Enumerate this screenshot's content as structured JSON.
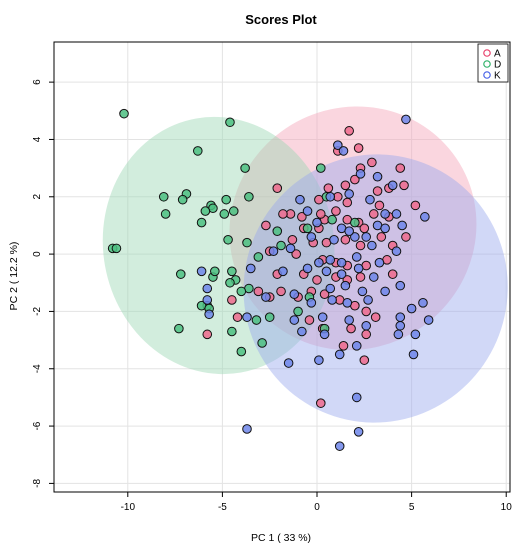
{
  "chart_data": {
    "type": "scatter",
    "title": "Scores Plot",
    "xlabel": "PC 1 ( 33 %)",
    "ylabel": "PC 2 ( 12.2 %)",
    "xlim": [
      -13.9,
      10.2
    ],
    "ylim": [
      -8.3,
      7.4
    ],
    "x_ticks": [
      -10,
      -5,
      0,
      5,
      10
    ],
    "y_ticks": [
      -8,
      -6,
      -4,
      -2,
      0,
      2,
      4,
      6
    ],
    "grid": true,
    "legend_position": "top-right",
    "colors": {
      "A": "#f4a3b9",
      "D": "#9bd8b4",
      "K": "#9aa8ee"
    },
    "edge_colors": {
      "A": "#e8436d",
      "D": "#33b36b",
      "K": "#4a64e8"
    },
    "series": [
      {
        "name": "A",
        "ellipse": {
          "cx": 1.9,
          "cy": 0.9,
          "rx": 6.6,
          "ry": 4.2,
          "angle": 34
        },
        "points": [
          [
            1.7,
            4.3
          ],
          [
            2.9,
            3.2
          ],
          [
            1.1,
            3.6
          ],
          [
            2.2,
            3.7
          ],
          [
            2.3,
            3.0
          ],
          [
            3.2,
            2.2
          ],
          [
            4.4,
            3.0
          ],
          [
            3.8,
            2.3
          ],
          [
            4.6,
            2.4
          ],
          [
            2.0,
            2.6
          ],
          [
            0.6,
            2.3
          ],
          [
            1.5,
            2.4
          ],
          [
            0.1,
            1.9
          ],
          [
            1.1,
            2.0
          ],
          [
            1.6,
            1.8
          ],
          [
            3.3,
            1.7
          ],
          [
            5.2,
            1.7
          ],
          [
            -2.1,
            2.3
          ],
          [
            -1.4,
            1.4
          ],
          [
            -1.8,
            1.4
          ],
          [
            -2.7,
            1.0
          ],
          [
            -0.8,
            1.3
          ],
          [
            -0.7,
            0.9
          ],
          [
            0.1,
            0.9
          ],
          [
            1.0,
            1.5
          ],
          [
            1.6,
            1.2
          ],
          [
            2.2,
            1.1
          ],
          [
            3.0,
            1.4
          ],
          [
            2.5,
            0.9
          ],
          [
            0.4,
            1.2
          ],
          [
            0.2,
            1.4
          ],
          [
            3.8,
            1.3
          ],
          [
            -0.2,
            0.4
          ],
          [
            0.5,
            0.4
          ],
          [
            1.5,
            0.5
          ],
          [
            2.3,
            0.3
          ],
          [
            3.4,
            0.6
          ],
          [
            4.0,
            0.3
          ],
          [
            4.7,
            0.6
          ],
          [
            -1.3,
            0.5
          ],
          [
            -2.5,
            0.1
          ],
          [
            -1.1,
            0.0
          ],
          [
            0.3,
            -0.2
          ],
          [
            1.0,
            -0.3
          ],
          [
            1.6,
            -0.4
          ],
          [
            2.6,
            -0.4
          ],
          [
            3.7,
            -0.2
          ],
          [
            -2.1,
            -0.7
          ],
          [
            -0.7,
            -0.7
          ],
          [
            0.0,
            -0.9
          ],
          [
            1.0,
            -0.8
          ],
          [
            1.6,
            -0.9
          ],
          [
            2.3,
            -0.8
          ],
          [
            4.0,
            -0.7
          ],
          [
            -1.9,
            -1.3
          ],
          [
            -2.5,
            -1.5
          ],
          [
            -1.0,
            -1.5
          ],
          [
            -0.3,
            -1.3
          ],
          [
            0.4,
            -1.4
          ],
          [
            1.2,
            -1.6
          ],
          [
            2.0,
            -1.8
          ],
          [
            2.6,
            -2.0
          ],
          [
            3.1,
            -2.2
          ],
          [
            -4.5,
            -1.6
          ],
          [
            -3.1,
            -1.3
          ],
          [
            -4.2,
            -2.2
          ],
          [
            -5.8,
            -2.8
          ],
          [
            -0.4,
            -2.3
          ],
          [
            0.3,
            -2.6
          ],
          [
            1.8,
            -2.6
          ],
          [
            2.6,
            -2.8
          ],
          [
            1.4,
            -3.2
          ],
          [
            2.5,
            -3.7
          ],
          [
            0.2,
            -5.2
          ]
        ]
      },
      {
        "name": "D",
        "ellipse": {
          "cx": -5.2,
          "cy": 0.3,
          "rx": 6.1,
          "ry": 4.5,
          "angle": 10
        },
        "points": [
          [
            -10.2,
            4.9
          ],
          [
            -4.6,
            4.6
          ],
          [
            -6.3,
            3.6
          ],
          [
            -3.8,
            3.0
          ],
          [
            -6.9,
            2.1
          ],
          [
            -7.1,
            1.9
          ],
          [
            -8.1,
            2.0
          ],
          [
            -5.6,
            1.7
          ],
          [
            -5.5,
            1.6
          ],
          [
            -5.9,
            1.5
          ],
          [
            -4.8,
            1.9
          ],
          [
            -4.9,
            1.4
          ],
          [
            -3.6,
            2.0
          ],
          [
            -8.0,
            1.4
          ],
          [
            -4.7,
            0.5
          ],
          [
            -4.4,
            1.5
          ],
          [
            -6.1,
            1.1
          ],
          [
            -2.1,
            0.8
          ],
          [
            -1.9,
            0.3
          ],
          [
            -10.8,
            0.2
          ],
          [
            -10.6,
            0.2
          ],
          [
            -3.1,
            -0.1
          ],
          [
            -3.7,
            0.4
          ],
          [
            -4.5,
            -0.6
          ],
          [
            -4.3,
            -0.9
          ],
          [
            -4.6,
            -1.0
          ],
          [
            -7.2,
            -0.7
          ],
          [
            -5.5,
            -0.8
          ],
          [
            -5.4,
            -0.6
          ],
          [
            -3.6,
            -1.2
          ],
          [
            -4.0,
            -1.3
          ],
          [
            -5.8,
            -1.8
          ],
          [
            -6.1,
            -1.8
          ],
          [
            -5.7,
            -1.9
          ],
          [
            -3.2,
            -2.3
          ],
          [
            -2.5,
            -2.2
          ],
          [
            -1.0,
            -2.0
          ],
          [
            -0.4,
            -1.5
          ],
          [
            0.2,
            3.0
          ],
          [
            0.5,
            2.0
          ],
          [
            -7.3,
            -2.6
          ],
          [
            -4.5,
            -2.7
          ],
          [
            -2.9,
            -3.1
          ],
          [
            -4.0,
            -3.4
          ],
          [
            0.4,
            -2.6
          ],
          [
            2.0,
            1.1
          ],
          [
            0.8,
            1.2
          ],
          [
            -0.5,
            0.9
          ]
        ]
      },
      {
        "name": "K",
        "ellipse": {
          "cx": 3.1,
          "cy": -1.2,
          "rx": 7.1,
          "ry": 4.6,
          "angle": 72
        },
        "points": [
          [
            4.7,
            4.7
          ],
          [
            1.1,
            3.8
          ],
          [
            1.4,
            3.6
          ],
          [
            2.3,
            2.8
          ],
          [
            3.2,
            2.7
          ],
          [
            4.0,
            2.4
          ],
          [
            1.7,
            2.1
          ],
          [
            0.7,
            2.0
          ],
          [
            2.8,
            1.9
          ],
          [
            -0.9,
            1.9
          ],
          [
            -0.5,
            1.5
          ],
          [
            3.6,
            1.4
          ],
          [
            4.2,
            1.4
          ],
          [
            5.7,
            1.3
          ],
          [
            0.0,
            1.1
          ],
          [
            1.3,
            0.9
          ],
          [
            2.0,
            0.6
          ],
          [
            3.2,
            1.0
          ],
          [
            4.5,
            1.0
          ],
          [
            -0.3,
            0.6
          ],
          [
            0.9,
            0.5
          ],
          [
            1.7,
            0.8
          ],
          [
            2.9,
            0.3
          ],
          [
            3.6,
            0.9
          ],
          [
            4.2,
            0.1
          ],
          [
            -2.3,
            0.1
          ],
          [
            -1.4,
            0.2
          ],
          [
            0.1,
            -0.3
          ],
          [
            0.7,
            -0.2
          ],
          [
            1.3,
            -0.3
          ],
          [
            2.1,
            -0.1
          ],
          [
            2.6,
            0.6
          ],
          [
            3.3,
            -0.3
          ],
          [
            -6.1,
            -0.6
          ],
          [
            -3.5,
            -0.5
          ],
          [
            -1.8,
            -0.6
          ],
          [
            -0.5,
            -0.5
          ],
          [
            0.5,
            -0.6
          ],
          [
            1.3,
            -0.7
          ],
          [
            2.2,
            -0.5
          ],
          [
            3.0,
            -0.8
          ],
          [
            4.4,
            -1.1
          ],
          [
            -5.8,
            -1.2
          ],
          [
            -2.7,
            -1.5
          ],
          [
            -1.2,
            -1.4
          ],
          [
            0.7,
            -1.2
          ],
          [
            1.5,
            -1.1
          ],
          [
            2.4,
            -1.3
          ],
          [
            3.6,
            -1.3
          ],
          [
            -0.3,
            -1.7
          ],
          [
            0.8,
            -1.6
          ],
          [
            1.6,
            -1.7
          ],
          [
            2.7,
            -1.6
          ],
          [
            -5.8,
            -1.6
          ],
          [
            -5.7,
            -2.1
          ],
          [
            4.4,
            -2.2
          ],
          [
            5.0,
            -1.9
          ],
          [
            5.6,
            -1.7
          ],
          [
            -3.7,
            -2.2
          ],
          [
            -1.2,
            -2.3
          ],
          [
            0.3,
            -2.2
          ],
          [
            1.7,
            -2.3
          ],
          [
            2.6,
            -2.5
          ],
          [
            -0.8,
            -2.7
          ],
          [
            0.4,
            -2.8
          ],
          [
            2.1,
            -3.2
          ],
          [
            4.4,
            -2.5
          ],
          [
            5.2,
            -2.8
          ],
          [
            5.9,
            -2.3
          ],
          [
            -1.5,
            -3.8
          ],
          [
            0.1,
            -3.7
          ],
          [
            1.2,
            -3.5
          ],
          [
            5.1,
            -3.5
          ],
          [
            4.3,
            -2.8
          ],
          [
            -3.7,
            -6.1
          ],
          [
            2.1,
            -5.0
          ],
          [
            2.2,
            -6.2
          ],
          [
            1.2,
            -6.7
          ]
        ]
      }
    ]
  }
}
